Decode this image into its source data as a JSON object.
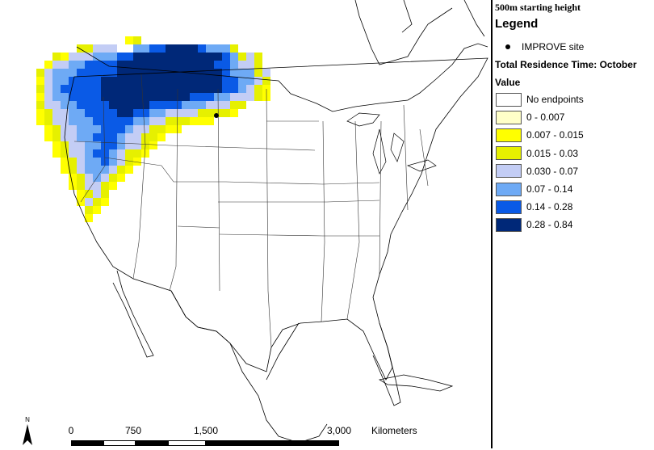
{
  "map": {
    "grid_colors": {
      "c1": "#ffffc8",
      "c2": "#ffff00",
      "c3": "#e6f000",
      "c4": "#c3cdf5",
      "c5": "#6eaaf5",
      "c6": "#0a5ae6",
      "c7": "#002878"
    },
    "improve_site_label": "IMPROVE site"
  },
  "legend": {
    "subtitle": "500m starting height",
    "title": "Legend",
    "improve_label": "IMPROVE site",
    "section_title": "Total Residence Time: October",
    "value_label": "Value",
    "classes": [
      {
        "label": "No endpoints",
        "color": "#ffffff"
      },
      {
        "label": "0 - 0.007",
        "color": "#ffffc8"
      },
      {
        "label": "0.007 - 0.015",
        "color": "#ffff00"
      },
      {
        "label": "0.015 - 0.03",
        "color": "#e6f000"
      },
      {
        "label": "0.030 - 0.07",
        "color": "#c3cdf5"
      },
      {
        "label": "0.07 - 0.14",
        "color": "#6eaaf5"
      },
      {
        "label": "0.14 - 0.28",
        "color": "#0a5ae6"
      },
      {
        "label": "0.28 - 0.84",
        "color": "#002878"
      }
    ]
  },
  "scale": {
    "ticks": [
      "0",
      "750",
      "1,500",
      "3,000"
    ],
    "unit": "Kilometers"
  },
  "north": {
    "label": "N"
  }
}
